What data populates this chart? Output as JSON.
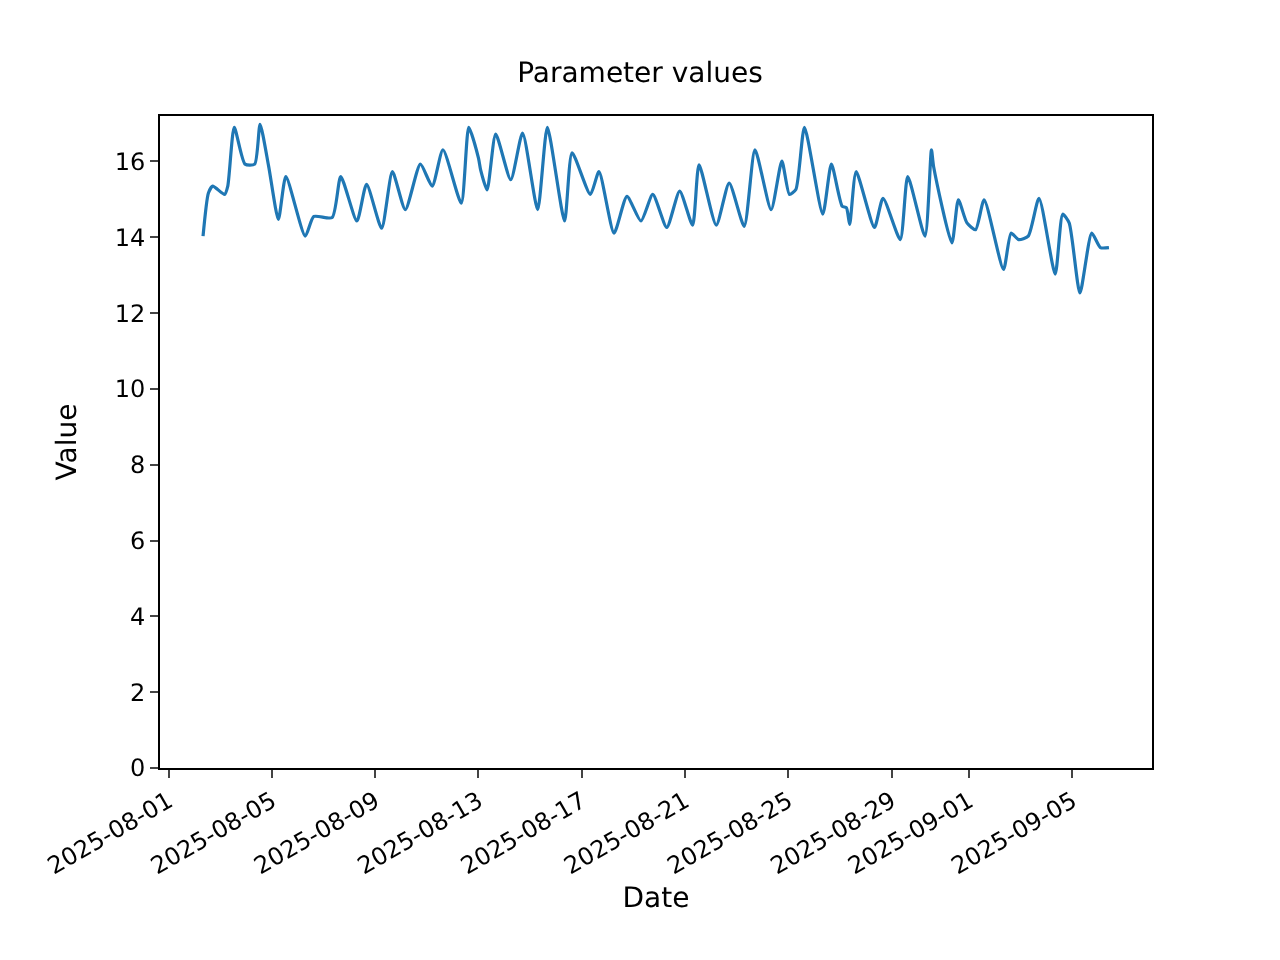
{
  "chart_data": {
    "type": "line",
    "title": "Parameter values",
    "xlabel": "Date",
    "ylabel": "Value",
    "x": [
      "2025-08-02T08:00",
      "2025-08-02T13:00",
      "2025-08-02T17:00",
      "2025-08-03T04:00",
      "2025-08-03T07:00",
      "2025-08-03T13:00",
      "2025-08-03T23:00",
      "2025-08-04T08:00",
      "2025-08-04T13:00",
      "2025-08-04T21:00",
      "2025-08-05T06:00",
      "2025-08-05T13:00",
      "2025-08-06T07:00",
      "2025-08-06T15:00",
      "2025-08-07T08:00",
      "2025-08-07T16:00",
      "2025-08-08T07:00",
      "2025-08-08T16:00",
      "2025-08-09T06:00",
      "2025-08-09T16:00",
      "2025-08-10T04:00",
      "2025-08-10T18:00",
      "2025-08-11T05:00",
      "2025-08-11T15:00",
      "2025-08-12T08:00",
      "2025-08-12T15:00",
      "2025-08-13T00:00",
      "2025-08-13T02:00",
      "2025-08-13T08:00",
      "2025-08-13T16:00",
      "2025-08-14T06:00",
      "2025-08-14T17:00",
      "2025-08-15T07:00",
      "2025-08-15T16:00",
      "2025-08-16T08:00",
      "2025-08-16T15:00",
      "2025-08-17T08:00",
      "2025-08-17T16:00",
      "2025-08-18T06:00",
      "2025-08-18T18:00",
      "2025-08-19T07:00",
      "2025-08-19T18:00",
      "2025-08-20T07:00",
      "2025-08-20T19:00",
      "2025-08-21T07:00",
      "2025-08-21T13:00",
      "2025-08-22T05:00",
      "2025-08-22T17:00",
      "2025-08-23T07:00",
      "2025-08-23T17:00",
      "2025-08-24T08:00",
      "2025-08-24T18:00",
      "2025-08-25T01:00",
      "2025-08-25T07:00",
      "2025-08-25T15:00",
      "2025-08-26T08:00",
      "2025-08-26T16:00",
      "2025-08-27T02:00",
      "2025-08-27T06:00",
      "2025-08-27T09:00",
      "2025-08-27T15:00",
      "2025-08-28T08:00",
      "2025-08-28T16:00",
      "2025-08-29T08:00",
      "2025-08-29T15:00",
      "2025-08-30T07:00",
      "2025-08-30T13:00",
      "2025-08-30T15:00",
      "2025-08-31T08:00",
      "2025-08-31T14:00",
      "2025-08-31T22:00",
      "2025-09-01T06:00",
      "2025-09-01T14:00",
      "2025-09-02T08:00",
      "2025-09-02T15:00",
      "2025-09-02T22:00",
      "2025-09-03T07:00",
      "2025-09-03T17:00",
      "2025-09-04T08:00",
      "2025-09-04T15:00",
      "2025-09-04T21:00",
      "2025-09-05T07:00",
      "2025-09-05T18:00",
      "2025-09-06T02:00",
      "2025-09-06T10:00"
    ],
    "series": [
      {
        "color": "#1f77b4",
        "values": [
          14.03,
          15.17,
          15.35,
          15.13,
          15.35,
          16.9,
          15.93,
          15.93,
          16.98,
          15.87,
          14.47,
          15.6,
          14.03,
          14.55,
          14.52,
          15.6,
          14.43,
          15.4,
          14.24,
          15.73,
          14.73,
          15.93,
          15.35,
          16.31,
          14.9,
          16.9,
          16.09,
          15.78,
          15.25,
          16.72,
          15.52,
          16.75,
          14.73,
          16.9,
          14.43,
          16.23,
          15.13,
          15.73,
          14.11,
          15.08,
          14.43,
          15.13,
          14.26,
          15.22,
          14.32,
          15.91,
          14.32,
          15.43,
          14.29,
          16.31,
          14.73,
          16.01,
          15.13,
          15.26,
          16.9,
          14.61,
          15.93,
          14.82,
          14.78,
          14.34,
          15.73,
          14.26,
          15.03,
          13.94,
          15.6,
          14.03,
          16.31,
          15.87,
          13.85,
          14.99,
          14.38,
          14.2,
          14.99,
          13.15,
          14.11,
          13.94,
          14.03,
          15.03,
          13.03,
          14.61,
          14.38,
          12.53,
          14.11,
          13.73,
          13.73
        ]
      }
    ],
    "xlim": [
      "2025-07-31T16:00",
      "2025-09-08T02:00"
    ],
    "xticks": [
      "2025-08-01",
      "2025-08-05",
      "2025-08-09",
      "2025-08-13",
      "2025-08-17",
      "2025-08-21",
      "2025-08-25",
      "2025-08-29",
      "2025-09-01",
      "2025-09-05"
    ],
    "ylim": [
      0,
      17.2
    ],
    "yticks": [
      0,
      2,
      4,
      6,
      8,
      10,
      12,
      14,
      16
    ],
    "marker": "none",
    "line_style": "solid"
  }
}
